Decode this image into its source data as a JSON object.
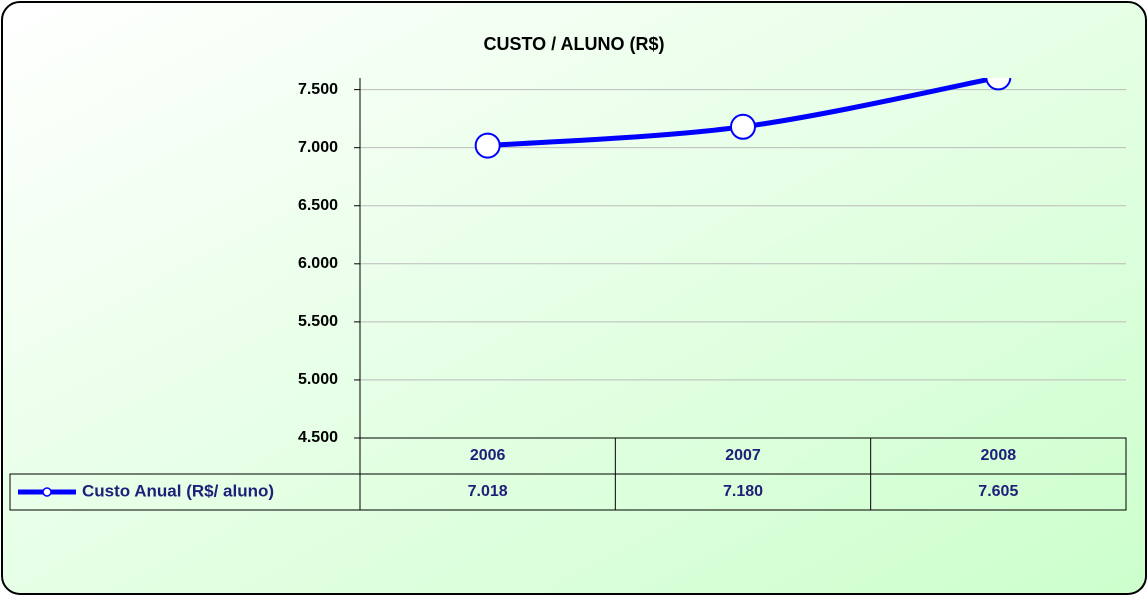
{
  "chart_data": {
    "type": "line",
    "title": "CUSTO / ALUNO (R$)",
    "categories": [
      "2006",
      "2007",
      "2008"
    ],
    "series": [
      {
        "name": "Custo Anual (R$/ aluno)",
        "color": "#0000ff",
        "values": [
          7018,
          7180,
          7605
        ],
        "value_labels": [
          "7.018",
          "7.180",
          "7.605"
        ]
      }
    ],
    "ylim": [
      4500,
      7600
    ],
    "yticks": [
      {
        "value": 4500,
        "label": "4.500"
      },
      {
        "value": 5000,
        "label": "5.000"
      },
      {
        "value": 5500,
        "label": "5.500"
      },
      {
        "value": 6000,
        "label": "6.000"
      },
      {
        "value": 6500,
        "label": "6.500"
      },
      {
        "value": 7000,
        "label": "7.000"
      },
      {
        "value": 7500,
        "label": "7.500"
      }
    ],
    "grid": true,
    "smooth": true
  }
}
